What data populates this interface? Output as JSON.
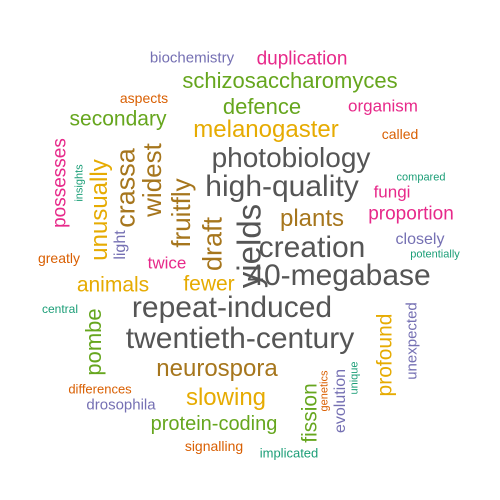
{
  "colors": {
    "green": "#1b9e77",
    "orange": "#d95f02",
    "purple": "#7570b3",
    "magenta": "#e7298a",
    "lime": "#66a61e",
    "gold": "#e6ab02",
    "brown": "#a6761d",
    "gray": "#555555"
  },
  "words": [
    {
      "text": "biochemistry",
      "color": "purple"
    },
    {
      "text": "duplication",
      "color": "magenta"
    },
    {
      "text": "schizosaccharomyces",
      "color": "lime"
    },
    {
      "text": "aspects",
      "color": "orange"
    },
    {
      "text": "organism",
      "color": "magenta"
    },
    {
      "text": "defence",
      "color": "lime"
    },
    {
      "text": "secondary",
      "color": "lime"
    },
    {
      "text": "melanogaster",
      "color": "gold"
    },
    {
      "text": "called",
      "color": "orange"
    },
    {
      "text": "photobiology",
      "color": "gray"
    },
    {
      "text": "compared",
      "color": "green"
    },
    {
      "text": "high-quality",
      "color": "gray"
    },
    {
      "text": "fungi",
      "color": "magenta"
    },
    {
      "text": "plants",
      "color": "brown"
    },
    {
      "text": "proportion",
      "color": "magenta"
    },
    {
      "text": "closely",
      "color": "purple"
    },
    {
      "text": "potentially",
      "color": "green"
    },
    {
      "text": "creation",
      "color": "gray"
    },
    {
      "text": "twice",
      "color": "magenta"
    },
    {
      "text": "greatly",
      "color": "orange"
    },
    {
      "text": "40-megabase",
      "color": "gray"
    },
    {
      "text": "fewer",
      "color": "gold"
    },
    {
      "text": "animals",
      "color": "gold"
    },
    {
      "text": "repeat-induced",
      "color": "gray"
    },
    {
      "text": "central",
      "color": "green"
    },
    {
      "text": "twentieth-century",
      "color": "gray"
    },
    {
      "text": "neurospora",
      "color": "brown"
    },
    {
      "text": "slowing",
      "color": "gold"
    },
    {
      "text": "differences",
      "color": "orange"
    },
    {
      "text": "drosophila",
      "color": "purple"
    },
    {
      "text": "protein-coding",
      "color": "lime"
    },
    {
      "text": "signalling",
      "color": "orange"
    },
    {
      "text": "implicated",
      "color": "green"
    },
    {
      "text": "possesses",
      "color": "magenta"
    },
    {
      "text": "insights",
      "color": "green"
    },
    {
      "text": "unusually",
      "color": "gold"
    },
    {
      "text": "crassa",
      "color": "brown"
    },
    {
      "text": "widest",
      "color": "brown"
    },
    {
      "text": "fruitfly",
      "color": "brown"
    },
    {
      "text": "light",
      "color": "purple"
    },
    {
      "text": "draft",
      "color": "brown"
    },
    {
      "text": "yields",
      "color": "gray"
    },
    {
      "text": "pombe",
      "color": "lime"
    },
    {
      "text": "fission",
      "color": "lime"
    },
    {
      "text": "genetics",
      "color": "orange"
    },
    {
      "text": "unique",
      "color": "green"
    },
    {
      "text": "evolution",
      "color": "purple"
    },
    {
      "text": "profound",
      "color": "gold"
    },
    {
      "text": "unexpected",
      "color": "purple"
    }
  ]
}
